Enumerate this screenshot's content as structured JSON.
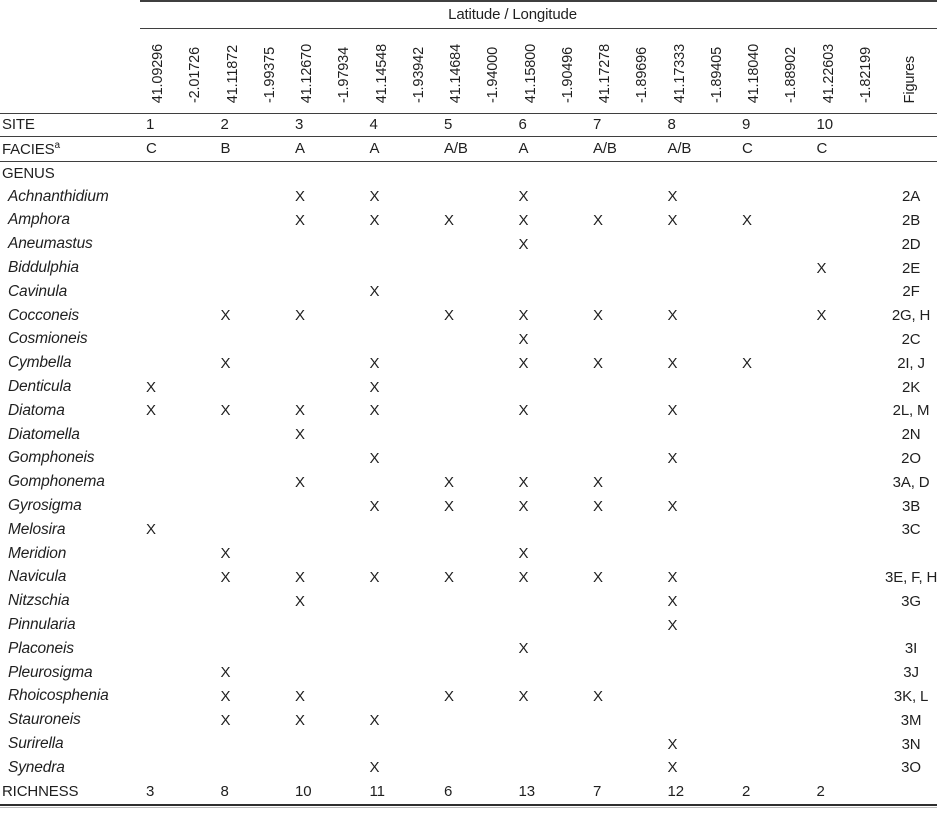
{
  "table": {
    "header": {
      "lat_long_label": "Latitude / Longitude",
      "figures_label": "Figures",
      "site_label": "SITE",
      "facies_label": "FACIES",
      "facies_superscript": "a",
      "genus_label": "GENUS",
      "richness_label": "RICHNESS"
    },
    "presence_mark": "X",
    "colors": {
      "text": "#1f1f1f",
      "rule": "#3f3f3f",
      "rule_light": "#bcbcbc",
      "background": "#ffffff"
    },
    "sites": [
      {
        "site": "1",
        "lat": "41.09296",
        "lon": "-2.01726",
        "facies": "C",
        "richness": "3"
      },
      {
        "site": "2",
        "lat": "41.11872",
        "lon": "-1.99375",
        "facies": "B",
        "richness": "8"
      },
      {
        "site": "3",
        "lat": "41.12670",
        "lon": "-1.97934",
        "facies": "A",
        "richness": "10"
      },
      {
        "site": "4",
        "lat": "41.14548",
        "lon": "-1.93942",
        "facies": "A",
        "richness": "11"
      },
      {
        "site": "5",
        "lat": "41.14684",
        "lon": "-1.94000",
        "facies": "A/B",
        "richness": "6"
      },
      {
        "site": "6",
        "lat": "41.15800",
        "lon": "-1.90496",
        "facies": "A",
        "richness": "13"
      },
      {
        "site": "7",
        "lat": "41.17278",
        "lon": "-1.89696",
        "facies": "A/B",
        "richness": "7"
      },
      {
        "site": "8",
        "lat": "41.17333",
        "lon": "-1.89405",
        "facies": "A/B",
        "richness": "12"
      },
      {
        "site": "9",
        "lat": "41.18040",
        "lon": "-1.88902",
        "facies": "C",
        "richness": "2"
      },
      {
        "site": "10",
        "lat": "41.22603",
        "lon": "-1.82199",
        "facies": "C",
        "richness": "2"
      }
    ],
    "genera": [
      {
        "name": "Achnanthidium",
        "presence": [
          0,
          0,
          1,
          1,
          0,
          1,
          0,
          1,
          0,
          0
        ],
        "figures": "2A"
      },
      {
        "name": "Amphora",
        "presence": [
          0,
          0,
          1,
          1,
          1,
          1,
          1,
          1,
          1,
          0
        ],
        "figures": "2B"
      },
      {
        "name": "Aneumastus",
        "presence": [
          0,
          0,
          0,
          0,
          0,
          1,
          0,
          0,
          0,
          0
        ],
        "figures": "2D"
      },
      {
        "name": "Biddulphia",
        "presence": [
          0,
          0,
          0,
          0,
          0,
          0,
          0,
          0,
          0,
          1
        ],
        "figures": "2E"
      },
      {
        "name": "Cavinula",
        "presence": [
          0,
          0,
          0,
          1,
          0,
          0,
          0,
          0,
          0,
          0
        ],
        "figures": "2F"
      },
      {
        "name": "Cocconeis",
        "presence": [
          0,
          1,
          1,
          0,
          1,
          1,
          1,
          1,
          0,
          1
        ],
        "figures": "2G, H"
      },
      {
        "name": "Cosmioneis",
        "presence": [
          0,
          0,
          0,
          0,
          0,
          1,
          0,
          0,
          0,
          0
        ],
        "figures": "2C"
      },
      {
        "name": "Cymbella",
        "presence": [
          0,
          1,
          0,
          1,
          0,
          1,
          1,
          1,
          1,
          0
        ],
        "figures": "2I, J"
      },
      {
        "name": "Denticula",
        "presence": [
          1,
          0,
          0,
          1,
          0,
          0,
          0,
          0,
          0,
          0
        ],
        "figures": "2K"
      },
      {
        "name": "Diatoma",
        "presence": [
          1,
          1,
          1,
          1,
          0,
          1,
          0,
          1,
          0,
          0
        ],
        "figures": "2L, M"
      },
      {
        "name": "Diatomella",
        "presence": [
          0,
          0,
          1,
          0,
          0,
          0,
          0,
          0,
          0,
          0
        ],
        "figures": "2N"
      },
      {
        "name": "Gomphoneis",
        "presence": [
          0,
          0,
          0,
          1,
          0,
          0,
          0,
          1,
          0,
          0
        ],
        "figures": "2O"
      },
      {
        "name": "Gomphonema",
        "presence": [
          0,
          0,
          1,
          0,
          1,
          1,
          1,
          0,
          0,
          0
        ],
        "figures": "3A, D"
      },
      {
        "name": "Gyrosigma",
        "presence": [
          0,
          0,
          0,
          1,
          1,
          1,
          1,
          1,
          0,
          0
        ],
        "figures": "3B"
      },
      {
        "name": "Melosira",
        "presence": [
          1,
          0,
          0,
          0,
          0,
          0,
          0,
          0,
          0,
          0
        ],
        "figures": "3C"
      },
      {
        "name": "Meridion",
        "presence": [
          0,
          1,
          0,
          0,
          0,
          1,
          0,
          0,
          0,
          0
        ],
        "figures": ""
      },
      {
        "name": "Navicula",
        "presence": [
          0,
          1,
          1,
          1,
          1,
          1,
          1,
          1,
          0,
          0
        ],
        "figures": "3E, F, H"
      },
      {
        "name": "Nitzschia",
        "presence": [
          0,
          0,
          1,
          0,
          0,
          0,
          0,
          1,
          0,
          0
        ],
        "figures": "3G"
      },
      {
        "name": "Pinnularia",
        "presence": [
          0,
          0,
          0,
          0,
          0,
          0,
          0,
          1,
          0,
          0
        ],
        "figures": ""
      },
      {
        "name": "Placoneis",
        "presence": [
          0,
          0,
          0,
          0,
          0,
          1,
          0,
          0,
          0,
          0
        ],
        "figures": "3I"
      },
      {
        "name": "Pleurosigma",
        "presence": [
          0,
          1,
          0,
          0,
          0,
          0,
          0,
          0,
          0,
          0
        ],
        "figures": "3J"
      },
      {
        "name": "Rhoicosphenia",
        "presence": [
          0,
          1,
          1,
          0,
          1,
          1,
          1,
          0,
          0,
          0
        ],
        "figures": "3K, L"
      },
      {
        "name": "Stauroneis",
        "presence": [
          0,
          1,
          1,
          1,
          0,
          0,
          0,
          0,
          0,
          0
        ],
        "figures": "3M"
      },
      {
        "name": "Surirella",
        "presence": [
          0,
          0,
          0,
          0,
          0,
          0,
          0,
          1,
          0,
          0
        ],
        "figures": "3N"
      },
      {
        "name": "Synedra",
        "presence": [
          0,
          0,
          0,
          1,
          0,
          0,
          0,
          1,
          0,
          0
        ],
        "figures": "3O"
      }
    ]
  }
}
